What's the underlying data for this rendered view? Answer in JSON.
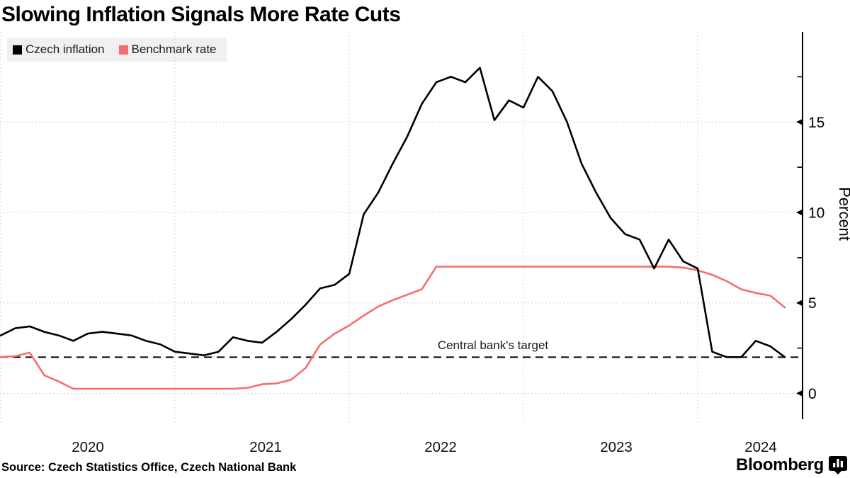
{
  "title": "Slowing Inflation Signals More Rate Cuts",
  "legend": [
    {
      "label": "Czech inflation",
      "color": "#000000"
    },
    {
      "label": "Benchmark rate",
      "color": "#f56e6e"
    }
  ],
  "source": "Source: Czech Statistics Office, Czech National Bank",
  "branding": "Bloomberg",
  "chart_data": {
    "type": "line",
    "frequency": "monthly",
    "x_start": "2019-12",
    "x_end": "2024-06",
    "x_tick_labels": [
      "2020",
      "2021",
      "2022",
      "2023",
      "2024"
    ],
    "ylabel": "Percent",
    "ylim": [
      -1.5,
      20
    ],
    "yticks": [
      0,
      5,
      10,
      15
    ],
    "yticks_minor": [
      2.5,
      7.5,
      12.5,
      17.5
    ],
    "grid": true,
    "legend_position": "top-left",
    "axis_side": "right",
    "target_line": {
      "value": 2,
      "label": "Central bank's target",
      "style": "dashed",
      "color": "#000000"
    },
    "series": [
      {
        "name": "Czech inflation",
        "color": "#000000",
        "values": [
          3.2,
          3.6,
          3.7,
          3.4,
          3.2,
          2.9,
          3.3,
          3.4,
          3.3,
          3.2,
          2.9,
          2.7,
          2.3,
          2.2,
          2.1,
          2.3,
          3.1,
          2.9,
          2.8,
          3.4,
          4.1,
          4.9,
          5.8,
          6.0,
          6.6,
          9.9,
          11.1,
          12.7,
          14.2,
          16.0,
          17.2,
          17.5,
          17.2,
          18.0,
          15.1,
          16.2,
          15.8,
          17.5,
          16.7,
          15.0,
          12.7,
          11.1,
          9.7,
          8.8,
          8.5,
          6.9,
          8.5,
          7.3,
          6.9,
          2.3,
          2.0,
          2.0,
          2.9,
          2.6,
          2.0
        ]
      },
      {
        "name": "Benchmark rate",
        "color": "#f56e6e",
        "values": [
          2.0,
          2.05,
          2.25,
          1.0,
          0.65,
          0.25,
          0.25,
          0.25,
          0.25,
          0.25,
          0.25,
          0.25,
          0.25,
          0.25,
          0.25,
          0.25,
          0.25,
          0.3,
          0.5,
          0.55,
          0.75,
          1.4,
          2.7,
          3.3,
          3.75,
          4.3,
          4.8,
          5.15,
          5.45,
          5.75,
          7.0,
          7.0,
          7.0,
          7.0,
          7.0,
          7.0,
          7.0,
          7.0,
          7.0,
          7.0,
          7.0,
          7.0,
          7.0,
          7.0,
          7.0,
          7.0,
          7.0,
          6.95,
          6.8,
          6.55,
          6.2,
          5.75,
          5.55,
          5.4,
          4.75
        ]
      }
    ]
  }
}
